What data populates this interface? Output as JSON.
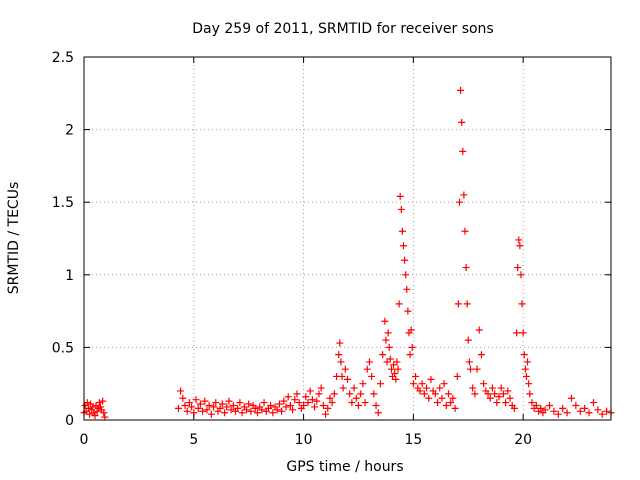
{
  "chart_data": {
    "type": "scatter",
    "title": "Day 259 of 2011, SRMTID for receiver sons",
    "xlabel": "GPS time / hours",
    "ylabel": "SRMTID / TECUs",
    "xlim": [
      0,
      24
    ],
    "ylim": [
      0,
      2.5
    ],
    "x_ticks": [
      "0",
      "5",
      "10",
      "15",
      "20"
    ],
    "y_ticks": [
      "0",
      "0.5",
      "1",
      "1.5",
      "2",
      "2.5"
    ],
    "grid": true,
    "marker": "plus",
    "color": "#ff0000",
    "x": [
      0.0,
      0.05,
      0.1,
      0.15,
      0.2,
      0.25,
      0.3,
      0.35,
      0.4,
      0.45,
      0.5,
      0.55,
      0.6,
      0.65,
      0.7,
      0.75,
      0.8,
      0.85,
      0.9,
      0.95,
      4.3,
      4.4,
      4.5,
      4.6,
      4.7,
      4.8,
      4.9,
      5.0,
      5.1,
      5.2,
      5.3,
      5.4,
      5.5,
      5.6,
      5.7,
      5.8,
      5.9,
      6.0,
      6.1,
      6.2,
      6.3,
      6.4,
      6.5,
      6.6,
      6.7,
      6.8,
      6.9,
      7.0,
      7.1,
      7.2,
      7.3,
      7.4,
      7.5,
      7.6,
      7.7,
      7.8,
      7.9,
      8.0,
      8.1,
      8.2,
      8.3,
      8.4,
      8.5,
      8.6,
      8.7,
      8.8,
      8.9,
      9.0,
      9.1,
      9.2,
      9.3,
      9.4,
      9.5,
      9.6,
      9.7,
      9.8,
      9.9,
      10.0,
      10.1,
      10.2,
      10.3,
      10.4,
      10.5,
      10.6,
      10.7,
      10.8,
      10.9,
      11.0,
      11.1,
      11.2,
      11.3,
      11.4,
      11.5,
      11.6,
      11.65,
      11.7,
      11.75,
      11.8,
      11.9,
      12.0,
      12.1,
      12.2,
      12.3,
      12.4,
      12.5,
      12.6,
      12.7,
      12.8,
      12.9,
      13.0,
      13.1,
      13.2,
      13.3,
      13.4,
      13.5,
      13.6,
      13.7,
      13.75,
      13.8,
      13.85,
      13.9,
      13.95,
      14.0,
      14.05,
      14.1,
      14.15,
      14.2,
      14.25,
      14.3,
      14.35,
      14.4,
      14.45,
      14.5,
      14.55,
      14.6,
      14.65,
      14.7,
      14.75,
      14.8,
      14.85,
      14.9,
      14.95,
      15.0,
      15.1,
      15.2,
      15.3,
      15.4,
      15.5,
      15.6,
      15.7,
      15.8,
      15.9,
      16.0,
      16.1,
      16.2,
      16.3,
      16.4,
      16.5,
      16.6,
      16.7,
      16.8,
      16.9,
      17.0,
      17.05,
      17.1,
      17.15,
      17.2,
      17.25,
      17.3,
      17.35,
      17.4,
      17.45,
      17.5,
      17.55,
      17.6,
      17.7,
      17.8,
      17.9,
      18.0,
      18.1,
      18.2,
      18.3,
      18.4,
      18.5,
      18.6,
      18.7,
      18.8,
      18.9,
      19.0,
      19.1,
      19.2,
      19.3,
      19.4,
      19.5,
      19.6,
      19.7,
      19.75,
      19.8,
      19.85,
      19.9,
      19.95,
      20.0,
      20.05,
      20.1,
      20.15,
      20.2,
      20.25,
      20.3,
      20.4,
      20.5,
      20.6,
      20.7,
      20.8,
      20.9,
      21.0,
      21.2,
      21.4,
      21.6,
      21.8,
      22.0,
      22.2,
      22.4,
      22.6,
      22.8,
      23.0,
      23.2,
      23.4,
      23.6,
      23.8,
      24.0
    ],
    "y": [
      0.05,
      0.1,
      0.06,
      0.12,
      0.08,
      0.04,
      0.11,
      0.07,
      0.09,
      0.05,
      0.03,
      0.1,
      0.06,
      0.08,
      0.12,
      0.09,
      0.07,
      0.13,
      0.05,
      0.02,
      0.08,
      0.2,
      0.15,
      0.1,
      0.06,
      0.12,
      0.09,
      0.05,
      0.14,
      0.08,
      0.11,
      0.06,
      0.13,
      0.07,
      0.1,
      0.04,
      0.09,
      0.12,
      0.06,
      0.08,
      0.11,
      0.05,
      0.09,
      0.13,
      0.07,
      0.1,
      0.06,
      0.08,
      0.12,
      0.05,
      0.09,
      0.07,
      0.11,
      0.06,
      0.1,
      0.08,
      0.05,
      0.09,
      0.07,
      0.12,
      0.06,
      0.08,
      0.1,
      0.05,
      0.09,
      0.07,
      0.11,
      0.06,
      0.13,
      0.09,
      0.16,
      0.1,
      0.07,
      0.14,
      0.18,
      0.12,
      0.08,
      0.1,
      0.16,
      0.12,
      0.2,
      0.14,
      0.09,
      0.13,
      0.18,
      0.22,
      0.1,
      0.04,
      0.08,
      0.15,
      0.12,
      0.18,
      0.3,
      0.45,
      0.53,
      0.4,
      0.3,
      0.22,
      0.35,
      0.28,
      0.18,
      0.12,
      0.22,
      0.15,
      0.1,
      0.18,
      0.25,
      0.12,
      0.35,
      0.4,
      0.3,
      0.18,
      0.1,
      0.05,
      0.25,
      0.45,
      0.68,
      0.55,
      0.4,
      0.6,
      0.5,
      0.42,
      0.35,
      0.3,
      0.38,
      0.32,
      0.28,
      0.4,
      0.35,
      0.8,
      1.54,
      1.45,
      1.3,
      1.2,
      1.1,
      1.0,
      0.9,
      0.75,
      0.6,
      0.45,
      0.62,
      0.5,
      0.25,
      0.3,
      0.22,
      0.2,
      0.25,
      0.18,
      0.22,
      0.15,
      0.28,
      0.2,
      0.18,
      0.12,
      0.22,
      0.15,
      0.25,
      0.1,
      0.18,
      0.12,
      0.15,
      0.08,
      0.3,
      0.8,
      1.5,
      2.27,
      2.05,
      1.85,
      1.55,
      1.3,
      1.05,
      0.8,
      0.55,
      0.4,
      0.35,
      0.22,
      0.18,
      0.35,
      0.62,
      0.45,
      0.25,
      0.2,
      0.18,
      0.15,
      0.22,
      0.18,
      0.12,
      0.16,
      0.22,
      0.18,
      0.12,
      0.2,
      0.15,
      0.1,
      0.08,
      0.6,
      1.05,
      1.24,
      1.2,
      1.0,
      0.8,
      0.6,
      0.45,
      0.35,
      0.3,
      0.4,
      0.25,
      0.18,
      0.12,
      0.08,
      0.1,
      0.06,
      0.08,
      0.05,
      0.07,
      0.1,
      0.06,
      0.04,
      0.08,
      0.05,
      0.15,
      0.1,
      0.06,
      0.08,
      0.05,
      0.12,
      0.07,
      0.04,
      0.06,
      0.05
    ]
  }
}
